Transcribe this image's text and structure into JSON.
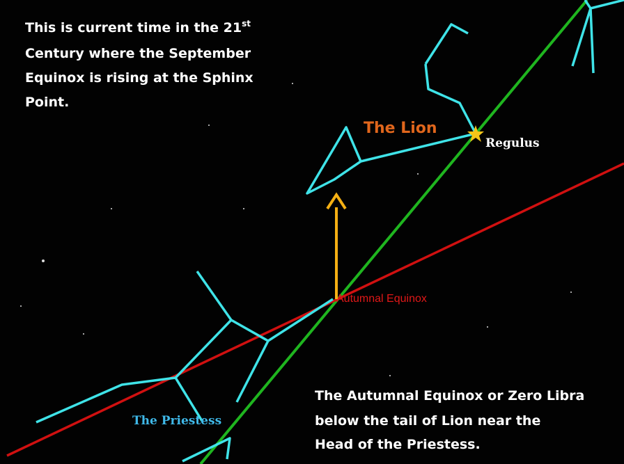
{
  "intro": {
    "lines": [
      "This is current time in the 21",
      "Century where the September",
      "Equinox is rising at the Sphinx",
      "Point."
    ],
    "superscript": "st"
  },
  "labels": {
    "lion": "The Lion",
    "regulus": "Regulus",
    "equinox": "Autumnal Equinox",
    "priestess": "The Priestess"
  },
  "caption": {
    "lines": [
      "The Autumnal Equinox or Zero Libra",
      "below the tail of  Lion near the",
      "Head of the Priestess."
    ]
  }
}
